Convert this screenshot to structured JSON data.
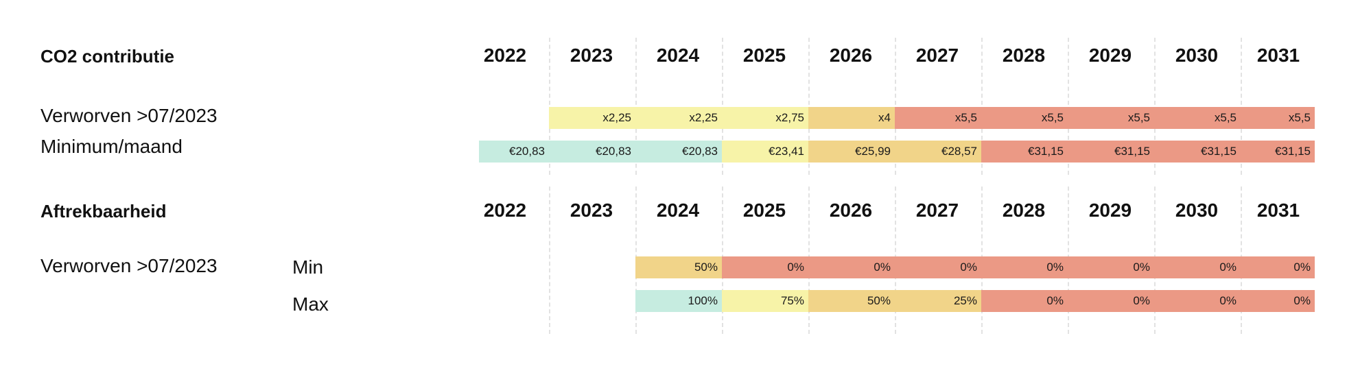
{
  "years": [
    "2022",
    "2023",
    "2024",
    "2025",
    "2026",
    "2027",
    "2028",
    "2029",
    "2030",
    "2031"
  ],
  "section1": {
    "title": "CO2 contributie",
    "rows": [
      {
        "label": "Verworven >07/2023",
        "cells": [
          {
            "value": "",
            "color": "none"
          },
          {
            "value": "x2,25",
            "color": "yellow"
          },
          {
            "value": "x2,25",
            "color": "yellow"
          },
          {
            "value": "x2,75",
            "color": "yellow"
          },
          {
            "value": "x4",
            "color": "orange"
          },
          {
            "value": "x5,5",
            "color": "red"
          },
          {
            "value": "x5,5",
            "color": "red"
          },
          {
            "value": "x5,5",
            "color": "red"
          },
          {
            "value": "x5,5",
            "color": "red"
          },
          {
            "value": "x5,5",
            "color": "red"
          }
        ]
      },
      {
        "label": "Minimum/maand",
        "cells": [
          {
            "value": "€20,83",
            "color": "teal"
          },
          {
            "value": "€20,83",
            "color": "teal"
          },
          {
            "value": "€20,83",
            "color": "teal"
          },
          {
            "value": "€23,41",
            "color": "yellow"
          },
          {
            "value": "€25,99",
            "color": "orange"
          },
          {
            "value": "€28,57",
            "color": "orange"
          },
          {
            "value": "€31,15",
            "color": "red"
          },
          {
            "value": "€31,15",
            "color": "red"
          },
          {
            "value": "€31,15",
            "color": "red"
          },
          {
            "value": "€31,15",
            "color": "red"
          }
        ]
      }
    ]
  },
  "section2": {
    "title": "Aftrekbaarheid",
    "rows": [
      {
        "label": "Verworven >07/2023",
        "sublabel": "Min",
        "cells": [
          {
            "value": "",
            "color": "none"
          },
          {
            "value": "",
            "color": "none"
          },
          {
            "value": "50%",
            "color": "orange"
          },
          {
            "value": "0%",
            "color": "red"
          },
          {
            "value": "0%",
            "color": "red"
          },
          {
            "value": "0%",
            "color": "red"
          },
          {
            "value": "0%",
            "color": "red"
          },
          {
            "value": "0%",
            "color": "red"
          },
          {
            "value": "0%",
            "color": "red"
          },
          {
            "value": "0%",
            "color": "red"
          }
        ]
      },
      {
        "label": "",
        "sublabel": "Max",
        "cells": [
          {
            "value": "",
            "color": "none"
          },
          {
            "value": "",
            "color": "none"
          },
          {
            "value": "100%",
            "color": "teal"
          },
          {
            "value": "75%",
            "color": "yellow"
          },
          {
            "value": "50%",
            "color": "orange"
          },
          {
            "value": "25%",
            "color": "orange"
          },
          {
            "value": "0%",
            "color": "red"
          },
          {
            "value": "0%",
            "color": "red"
          },
          {
            "value": "0%",
            "color": "red"
          },
          {
            "value": "0%",
            "color": "red"
          }
        ]
      }
    ]
  },
  "colors": {
    "teal": "#c6ece0",
    "yellow": "#f7f3a8",
    "orange": "#f1d489",
    "red": "#eb9985"
  }
}
